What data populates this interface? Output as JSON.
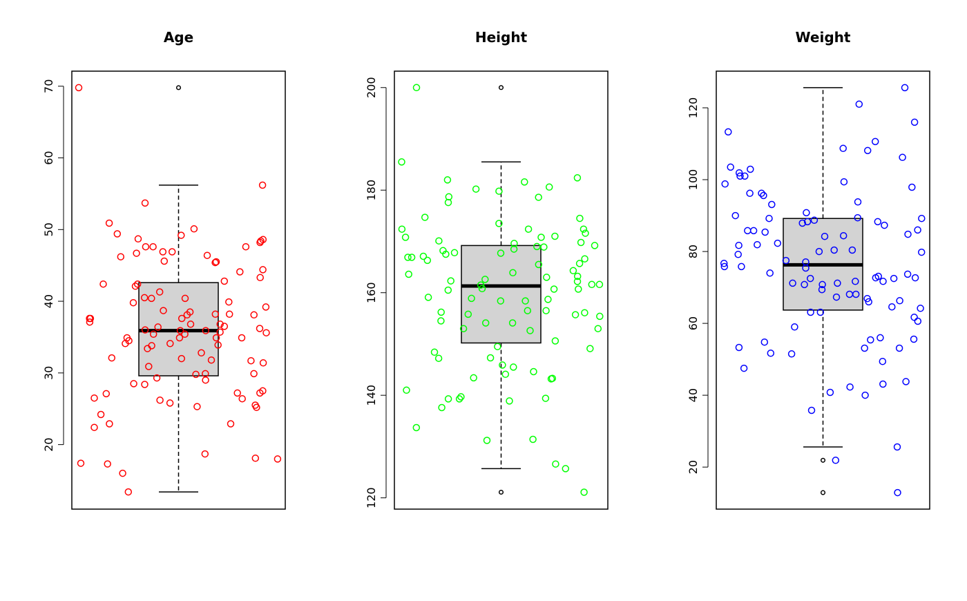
{
  "chart_data": [
    {
      "type": "boxplot",
      "title": "Age",
      "xlabel": "",
      "ylabel": "",
      "ylim": [
        11.0,
        72.1
      ],
      "yticks": [
        20,
        30,
        40,
        50,
        60,
        70
      ],
      "point_color": "#ff0000",
      "box_fill": "#d3d3d3",
      "stats": {
        "lower_whisker": 13.4,
        "q1": 29.6,
        "median": 35.9,
        "q3": 42.6,
        "upper_whisker": 56.2,
        "outliers": [
          69.8
        ]
      },
      "points": [
        69.8,
        56.2,
        46.7,
        46.2,
        42.8,
        40.4,
        40.5,
        39.9,
        38.2,
        38.1,
        38.2,
        35.9,
        34.9,
        34.9,
        35.4,
        35.7,
        33.9,
        37.6,
        45.4,
        46.9,
        44.4,
        44.1,
        42.4,
        49.2,
        48.6,
        45.5,
        46.4,
        50.1,
        48.4,
        48.2,
        47.6,
        47.6,
        47.6,
        53.7,
        50.9,
        48.7,
        45.6,
        42.4,
        39.2,
        38.5,
        36.5,
        38.1,
        37.6,
        39.8,
        36.8,
        35.9,
        46.9,
        49.4,
        43.3,
        37.1,
        33.8,
        33.4,
        31.8,
        31.4,
        32.0,
        32.1,
        41.3,
        42.1,
        40.4,
        38.7,
        36.0,
        35.4,
        32.8,
        34.1,
        36.2,
        34.1,
        31.7,
        29.0,
        29.9,
        37.6,
        34.9,
        34.9,
        35.6,
        36.4,
        36.8,
        34.5,
        29.8,
        30.9,
        28.4,
        29.3,
        27.2,
        29.9,
        24.2,
        26.4,
        26.5,
        26.2,
        22.9,
        22.4,
        18.0,
        16.0,
        18.7,
        17.3,
        25.8,
        25.3,
        27.1,
        27.5,
        25.5,
        25.2,
        18.1,
        27.2,
        22.9,
        28.5,
        17.4,
        13.4
      ]
    },
    {
      "type": "boxplot",
      "title": "Height",
      "xlabel": "",
      "ylabel": "",
      "ylim": [
        117.8,
        203.2
      ],
      "yticks": [
        120,
        140,
        160,
        180,
        200
      ],
      "point_color": "#00ff00",
      "box_fill": "#d3d3d3",
      "stats": {
        "lower_whisker": 125.7,
        "q1": 150.2,
        "median": 161.3,
        "q3": 169.2,
        "upper_whisker": 185.5,
        "outliers": [
          200.0,
          121.1
        ]
      },
      "points": [
        200.0,
        185.5,
        181.6,
        182.0,
        180.6,
        179.8,
        178.6,
        178.7,
        182.4,
        177.6,
        180.2,
        174.5,
        174.7,
        173.5,
        172.4,
        172.4,
        172.4,
        171.6,
        170.8,
        169.8,
        170.1,
        169.2,
        169.6,
        169.0,
        167.8,
        167.5,
        168.2,
        168.5,
        166.9,
        171.0,
        170.8,
        168.9,
        167.7,
        166.9,
        167.1,
        166.6,
        166.3,
        165.5,
        165.7,
        163.6,
        163.2,
        164.3,
        161.6,
        161.6,
        160.7,
        162.6,
        162.3,
        163.0,
        162.2,
        161.5,
        160.5,
        160.8,
        160.7,
        163.9,
        158.9,
        158.4,
        158.7,
        155.8,
        156.5,
        154.1,
        154.5,
        153.0,
        153.0,
        155.4,
        156.5,
        155.7,
        156.1,
        156.2,
        152.6,
        159.1,
        158.4,
        154.1,
        150.6,
        149.1,
        149.5,
        147.2,
        147.3,
        148.4,
        144.6,
        144.1,
        145.5,
        145.9,
        143.3,
        143.4,
        143.2,
        141.0,
        139.7,
        138.9,
        137.6,
        139.4,
        139.3,
        139.3,
        131.4,
        131.2,
        133.7,
        126.6,
        125.7,
        121.1
      ]
    },
    {
      "type": "boxplot",
      "title": "Weight",
      "xlabel": "",
      "ylabel": "",
      "ylim": [
        8.3,
        130.2
      ],
      "yticks": [
        20,
        40,
        60,
        80,
        100,
        120
      ],
      "point_color": "#0000ff",
      "box_fill": "#d3d3d3",
      "stats": {
        "lower_whisker": 25.6,
        "q1": 63.7,
        "median": 76.3,
        "q3": 89.2,
        "upper_whisker": 125.6,
        "outliers": [
          21.9,
          12.9
        ]
      },
      "points": [
        125.6,
        121.0,
        116.0,
        113.3,
        110.6,
        108.7,
        108.1,
        106.2,
        103.5,
        102.9,
        101.9,
        101.0,
        101.0,
        98.8,
        99.4,
        97.9,
        96.2,
        96.2,
        95.6,
        93.8,
        93.1,
        88.7,
        89.2,
        88.3,
        89.4,
        88.3,
        87.9,
        90.8,
        90.0,
        89.2,
        87.3,
        86.0,
        85.8,
        84.8,
        84.2,
        85.8,
        85.4,
        84.4,
        81.9,
        81.7,
        82.3,
        80.4,
        80.4,
        80.0,
        79.8,
        79.2,
        77.1,
        77.5,
        76.7,
        75.8,
        75.4,
        75.8,
        74.0,
        73.7,
        73.1,
        72.7,
        72.5,
        72.5,
        72.7,
        71.7,
        71.7,
        71.2,
        71.2,
        70.8,
        70.8,
        69.4,
        67.3,
        66.9,
        68.1,
        68.1,
        66.0,
        66.3,
        64.6,
        64.2,
        63.1,
        63.1,
        61.7,
        60.6,
        59.0,
        53.3,
        51.5,
        53.1,
        53.1,
        55.4,
        55.6,
        56.0,
        54.8,
        51.7,
        49.4,
        47.5,
        43.8,
        43.1,
        42.3,
        40.0,
        40.8,
        35.8,
        25.6,
        21.9,
        12.9
      ]
    }
  ]
}
